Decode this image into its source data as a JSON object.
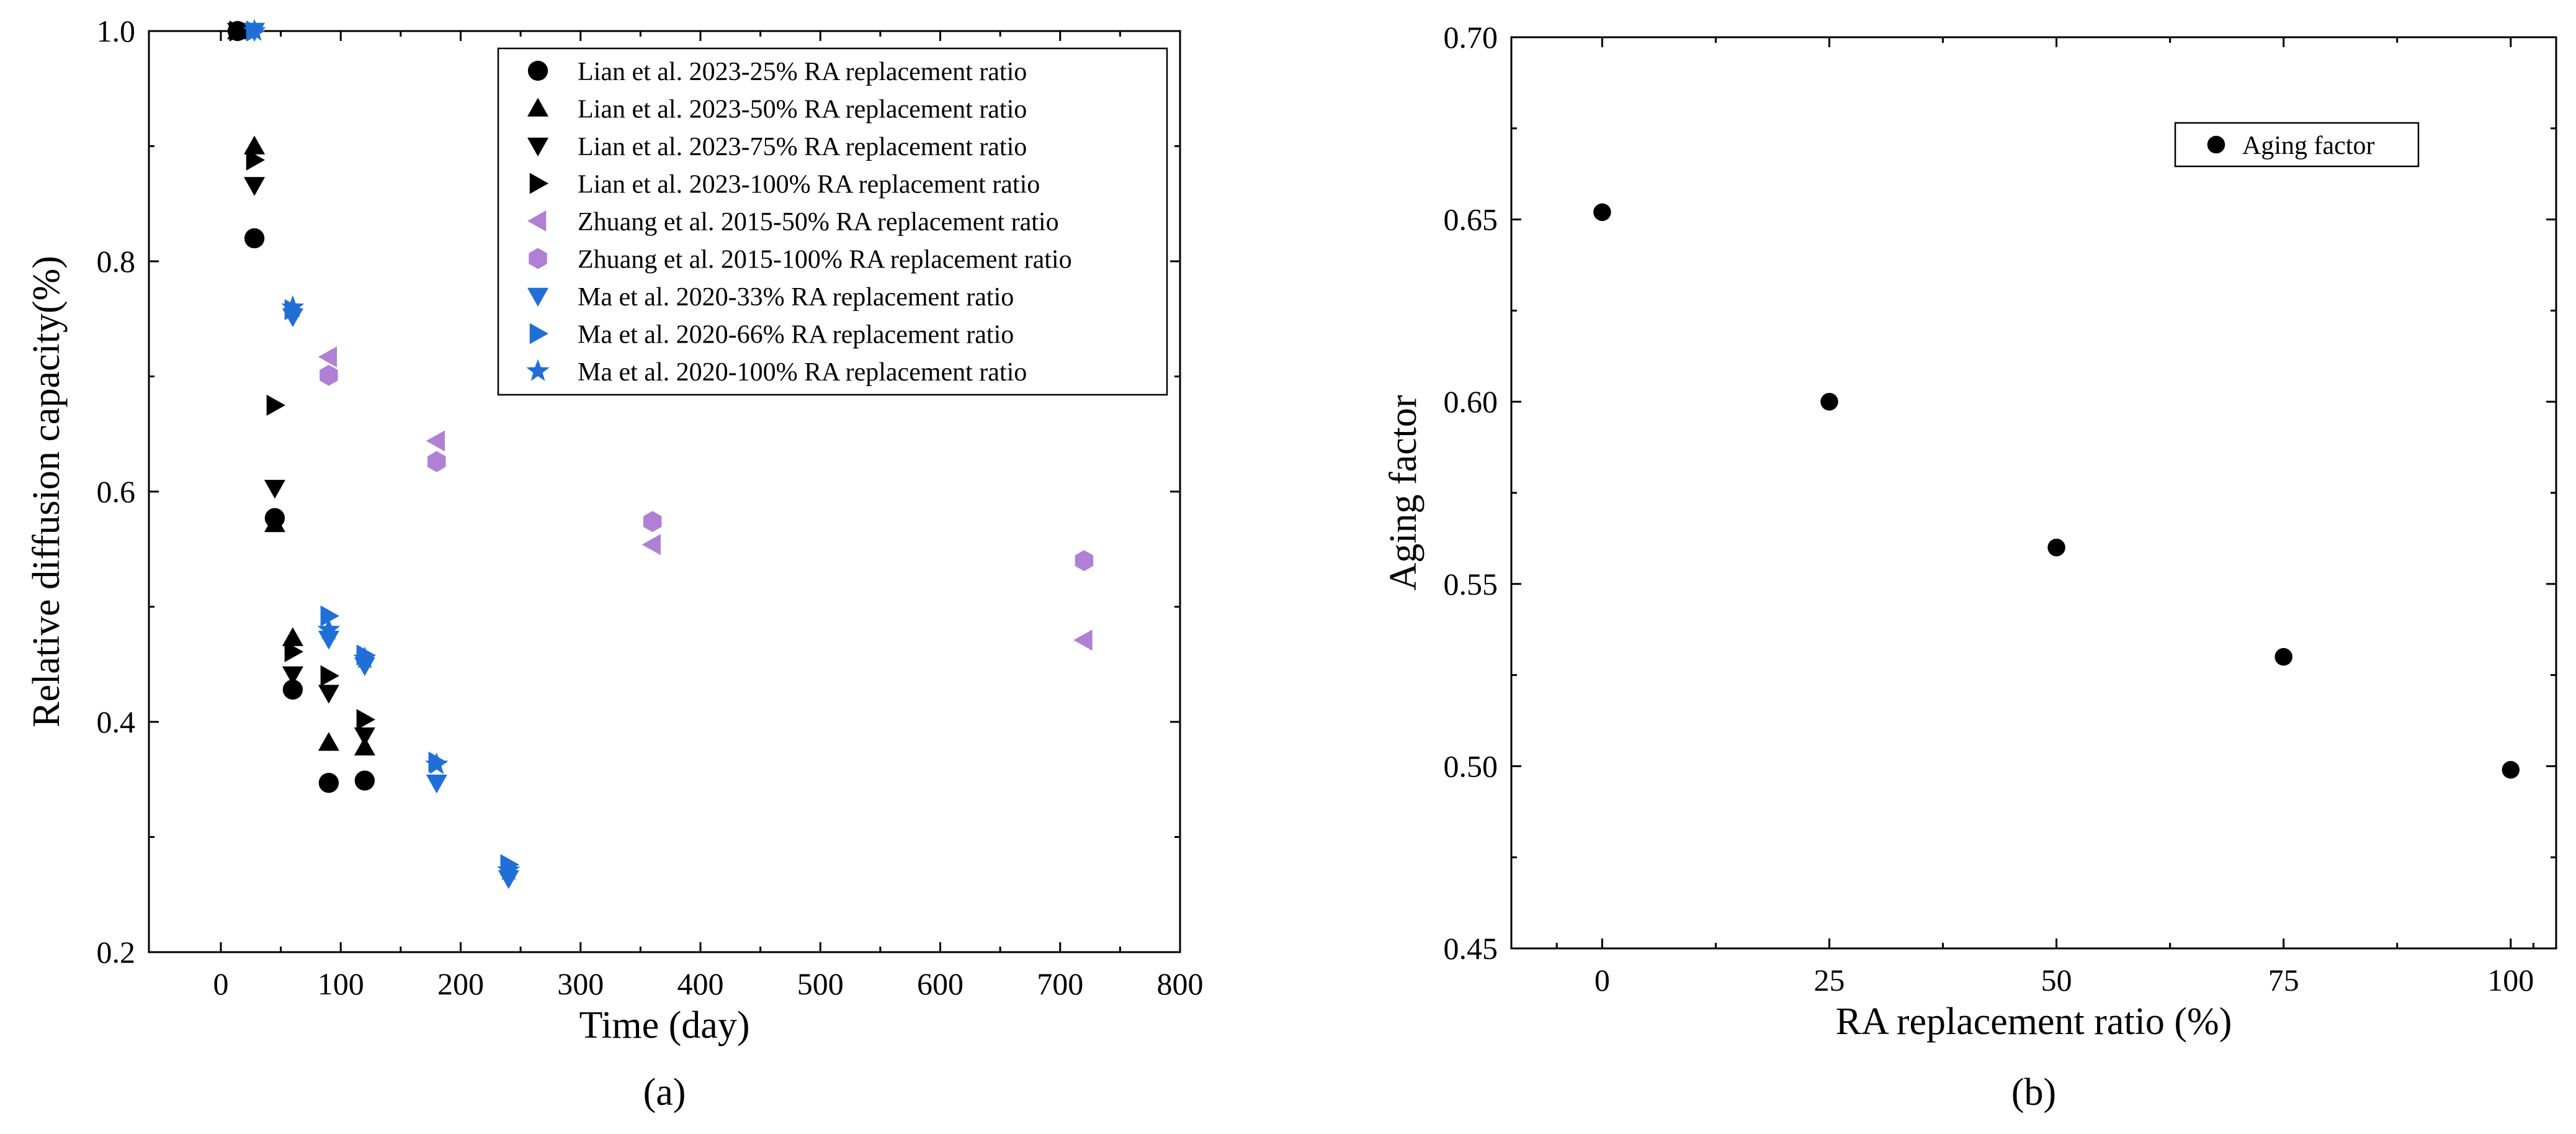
{
  "chart_data": [
    {
      "panel_label": "(a)",
      "type": "scatter",
      "xlabel": "Time (day)",
      "ylabel": "Relative diffusion capacity(%)",
      "xlim": [
        -60,
        800
      ],
      "ylim": [
        0.2,
        1.0
      ],
      "xticks": [
        0,
        100,
        200,
        300,
        400,
        500,
        600,
        700,
        800
      ],
      "yticks": [
        0.2,
        0.4,
        0.6,
        0.8,
        1.0
      ],
      "xtick_labels": [
        "0",
        "100",
        "200",
        "300",
        "400",
        "500",
        "600",
        "700",
        "800"
      ],
      "ytick_labels": [
        "0.2",
        "0.4",
        "0.6",
        "0.8",
        "1.0"
      ],
      "legend_position": "top-right",
      "series": [
        {
          "name": "Lian et al. 2023-25% RA replacement ratio",
          "marker": "circle",
          "color": "#000000",
          "x": [
            14,
            28,
            45,
            60,
            90,
            120
          ],
          "y": [
            1.0,
            0.82,
            0.577,
            0.428,
            0.347,
            0.349
          ]
        },
        {
          "name": "Lian et al. 2023-50% RA replacement ratio",
          "marker": "triangle-up",
          "color": "#000000",
          "x": [
            14,
            28,
            45,
            60,
            90,
            120
          ],
          "y": [
            1.0,
            0.9,
            0.572,
            0.473,
            0.382,
            0.378
          ]
        },
        {
          "name": "Lian et al. 2023-75% RA replacement ratio",
          "marker": "triangle-down",
          "color": "#000000",
          "x": [
            14,
            28,
            45,
            60,
            90,
            120
          ],
          "y": [
            1.0,
            0.866,
            0.603,
            0.441,
            0.425,
            0.388
          ]
        },
        {
          "name": "Lian et al. 2023-100% RA replacement ratio",
          "marker": "triangle-right",
          "color": "#000000",
          "x": [
            14,
            28,
            45,
            60,
            90,
            120
          ],
          "y": [
            1.0,
            0.888,
            0.675,
            0.461,
            0.44,
            0.402
          ]
        },
        {
          "name": "Zhuang et al. 2015-50% RA replacement ratio",
          "marker": "triangle-left",
          "color": "#b07fd6",
          "x": [
            90,
            180,
            360,
            720
          ],
          "y": [
            0.717,
            0.644,
            0.554,
            0.471
          ]
        },
        {
          "name": "Zhuang et al. 2015-100% RA replacement ratio",
          "marker": "hexagon",
          "color": "#b07fd6",
          "x": [
            90,
            180,
            360,
            720
          ],
          "y": [
            0.701,
            0.626,
            0.574,
            0.54
          ]
        },
        {
          "name": "Ma et al. 2020-33% RA replacement ratio",
          "marker": "triangle-down",
          "color": "#1f6fd6",
          "x": [
            28,
            60,
            90,
            120,
            180,
            240
          ],
          "y": [
            1.0,
            0.752,
            0.472,
            0.449,
            0.347,
            0.264
          ]
        },
        {
          "name": "Ma et al. 2020-66% RA replacement ratio",
          "marker": "triangle-right",
          "color": "#1f6fd6",
          "x": [
            28,
            60,
            90,
            120,
            180,
            240
          ],
          "y": [
            1.0,
            0.758,
            0.492,
            0.458,
            0.365,
            0.276
          ]
        },
        {
          "name": "Ma et al. 2020-100% RA replacement ratio",
          "marker": "star",
          "color": "#1f6fd6",
          "x": [
            28,
            60,
            90,
            120,
            180,
            240
          ],
          "y": [
            1.0,
            0.76,
            0.48,
            0.455,
            0.363,
            0.271
          ]
        }
      ]
    },
    {
      "panel_label": "(b)",
      "type": "scatter",
      "xlabel": "RA replacement ratio (%)",
      "ylabel": "Aging factor",
      "xlim": [
        -10,
        105
      ],
      "ylim": [
        0.45,
        0.7
      ],
      "xticks": [
        0,
        25,
        50,
        75,
        100
      ],
      "yticks": [
        0.45,
        0.5,
        0.55,
        0.6,
        0.65,
        0.7
      ],
      "xtick_labels": [
        "0",
        "25",
        "50",
        "75",
        "100"
      ],
      "ytick_labels": [
        "0.45",
        "0.50",
        "0.55",
        "0.60",
        "0.65",
        "0.70"
      ],
      "legend_position": "top-right",
      "series": [
        {
          "name": "Aging factor",
          "marker": "circle",
          "color": "#000000",
          "x": [
            0,
            25,
            50,
            75,
            100
          ],
          "y": [
            0.652,
            0.6,
            0.56,
            0.53,
            0.499
          ]
        }
      ]
    }
  ]
}
